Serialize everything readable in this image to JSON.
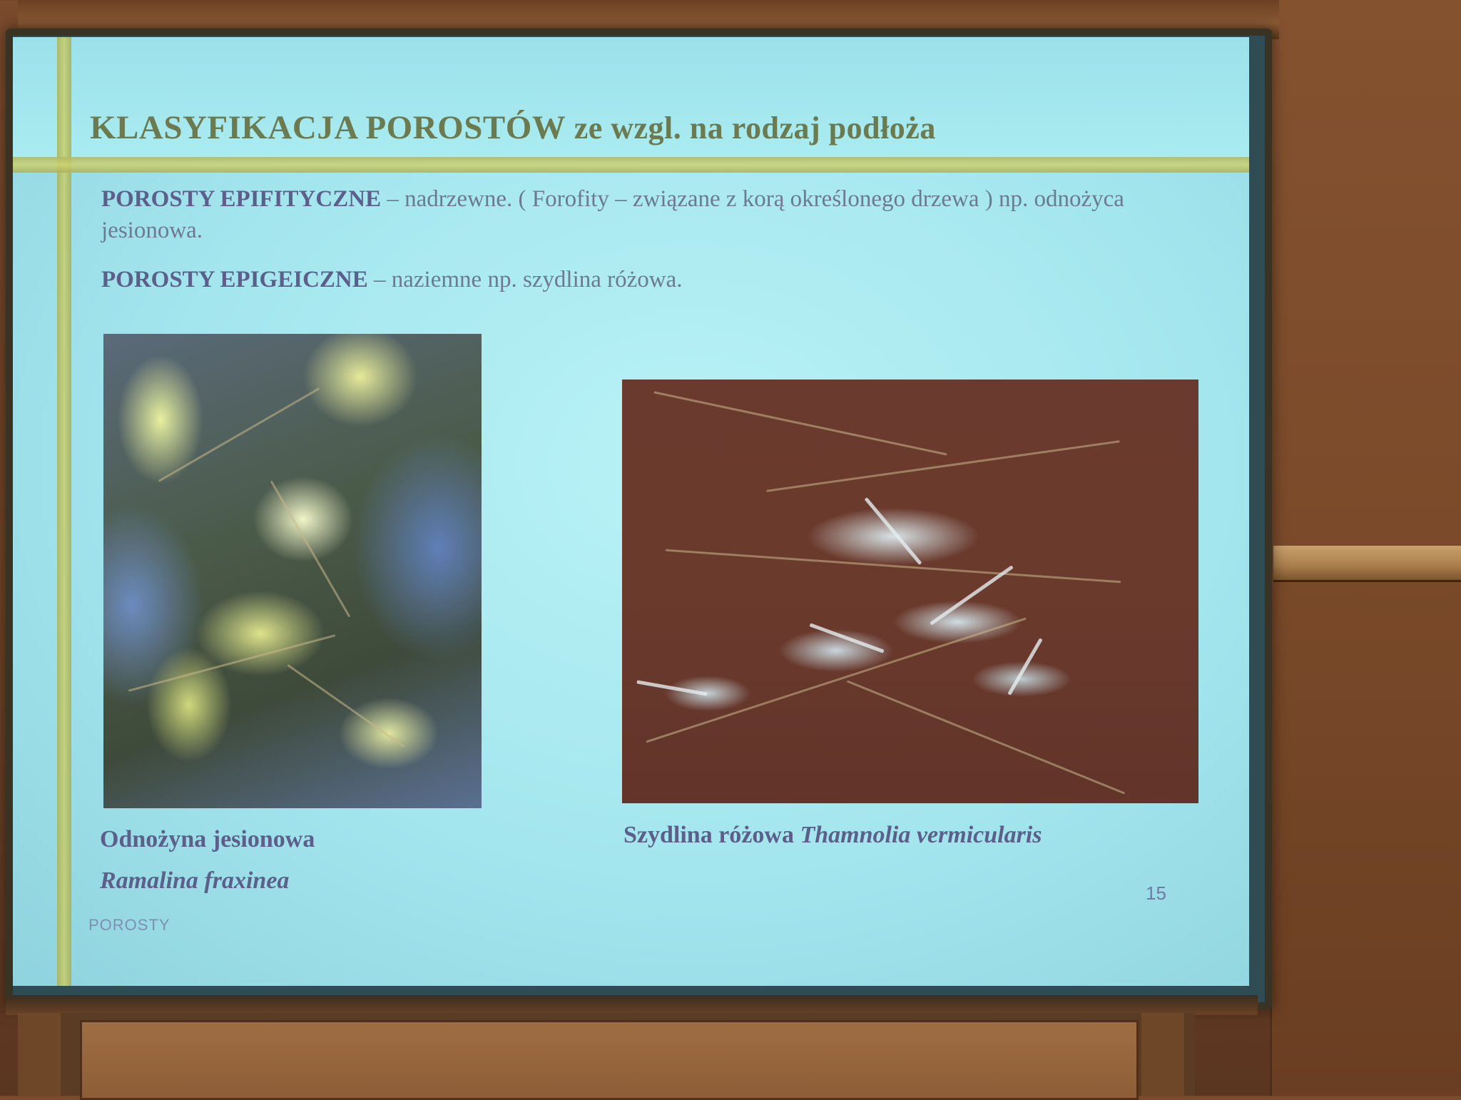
{
  "slide": {
    "title_main": "KLASYFIKACJA POROSTÓW",
    "title_rest": "ze wzgl. na rodzaj podłoża",
    "paragraph1": {
      "bold": "POROSTY EPIFITYCZNE",
      "text": "– nadrzewne. ( Forofity – związane z korą określonego drzewa ) np. odnożyca jesionowa."
    },
    "paragraph2": {
      "bold": "POROSTY EPIGEICZNE",
      "text": "– naziemne np. szydlina różowa."
    },
    "caption_left_line1": "Odnożyna jesionowa",
    "caption_left_line2": "Ramalina fraxinea",
    "caption_right_common": "Szydlina różowa",
    "caption_right_latin": "Thamnolia vermicularis",
    "slide_number": "15",
    "footer": "POROSTY"
  },
  "colors": {
    "slide_background": "#a9ecf1",
    "title_color": "#6c7a50",
    "accent_line": "#c8cf6a",
    "body_text": "#6b7a90",
    "bold_text": "#5b5f8a"
  }
}
